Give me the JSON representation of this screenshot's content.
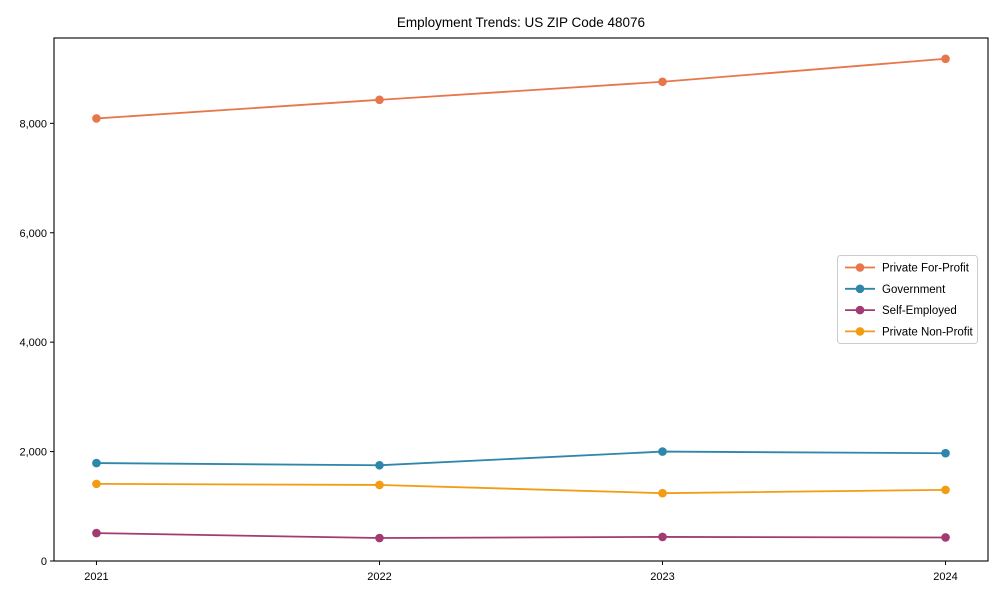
{
  "chart_data": {
    "type": "line",
    "title": "Employment Trends: US ZIP Code 48076",
    "x": [
      2021,
      2022,
      2023,
      2024
    ],
    "xtick_labels": [
      "2021",
      "2022",
      "2023",
      "2024"
    ],
    "series": [
      {
        "name": "Private For-Profit",
        "color": "#E8764B",
        "values": [
          8090,
          8430,
          8760,
          9180
        ]
      },
      {
        "name": "Government",
        "color": "#2E86AB",
        "values": [
          1790,
          1750,
          2000,
          1970
        ]
      },
      {
        "name": "Self-Employed",
        "color": "#A23B72",
        "values": [
          510,
          420,
          440,
          430
        ]
      },
      {
        "name": "Private Non-Profit",
        "color": "#F39C12",
        "values": [
          1410,
          1390,
          1240,
          1300
        ]
      }
    ],
    "xlabel": "",
    "ylabel": "",
    "ylim": [
      0,
      9560
    ],
    "yticks": [
      0,
      2000,
      4000,
      6000,
      8000
    ],
    "ytick_labels": [
      "0",
      "2,000",
      "4,000",
      "6,000",
      "8,000"
    ],
    "grid": false,
    "legend_position": "center right",
    "marker": "circle",
    "axis_color": "#000000",
    "background_color": "#ffffff"
  }
}
